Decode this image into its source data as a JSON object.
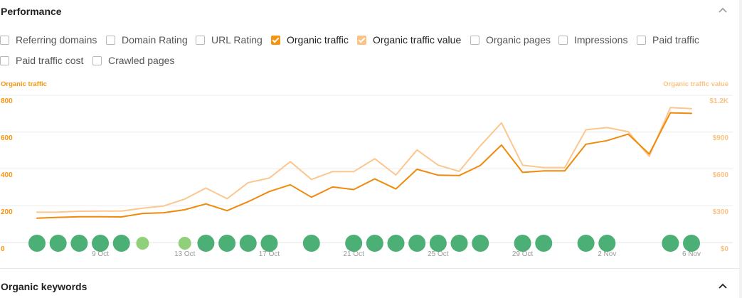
{
  "header": {
    "title": "Performance"
  },
  "metrics": [
    {
      "label": "Referring domains",
      "checked": false,
      "color": ""
    },
    {
      "label": "Domain Rating",
      "checked": false,
      "color": ""
    },
    {
      "label": "URL Rating",
      "checked": false,
      "color": ""
    },
    {
      "label": "Organic traffic",
      "checked": true,
      "color": "#f7940f"
    },
    {
      "label": "Organic traffic value",
      "checked": true,
      "color": "#fbc283"
    },
    {
      "label": "Organic pages",
      "checked": false,
      "color": ""
    },
    {
      "label": "Impressions",
      "checked": false,
      "color": ""
    },
    {
      "label": "Paid traffic",
      "checked": false,
      "color": ""
    },
    {
      "label": "Paid traffic cost",
      "checked": false,
      "color": ""
    },
    {
      "label": "Crawled pages",
      "checked": false,
      "color": ""
    }
  ],
  "chart_data": {
    "type": "line",
    "left_axis_title": "Organic traffic",
    "right_axis_title": "Organic traffic value",
    "left_ticks": [
      "0",
      "200",
      "400",
      "600",
      "800"
    ],
    "right_ticks": [
      "$0",
      "$300",
      "$600",
      "$900",
      "$1.2K"
    ],
    "ylim_left": [
      0,
      800
    ],
    "ylim_right": [
      0,
      1200
    ],
    "x_start_date": "2023-10-06",
    "x_ticks": [
      "9 Oct",
      "13 Oct",
      "17 Oct",
      "21 Oct",
      "25 Oct",
      "29 Oct",
      "2 Nov",
      "6 Nov"
    ],
    "x_tick_days": [
      3,
      7,
      11,
      15,
      19,
      23,
      27,
      31
    ],
    "series": [
      {
        "name": "Organic traffic",
        "axis": "left",
        "color": "#f08a0c",
        "x": [
          0,
          1,
          2,
          3,
          4,
          5,
          6,
          7,
          8,
          9,
          10,
          11,
          12,
          13,
          14,
          15,
          16,
          17,
          18,
          19,
          20,
          21,
          22,
          23,
          24,
          25,
          26,
          27,
          28,
          29,
          30,
          31
        ],
        "values": [
          132,
          137,
          140,
          140,
          139,
          158,
          162,
          178,
          210,
          173,
          222,
          277,
          314,
          246,
          302,
          288,
          346,
          291,
          398,
          366,
          364,
          419,
          530,
          381,
          389,
          389,
          534,
          554,
          589,
          481,
          705,
          702
        ]
      },
      {
        "name": "Organic traffic value",
        "axis": "right",
        "color": "#fbc78f",
        "x": [
          0,
          1,
          2,
          3,
          4,
          5,
          6,
          7,
          8,
          9,
          10,
          11,
          12,
          13,
          14,
          15,
          16,
          17,
          18,
          19,
          20,
          21,
          22,
          23,
          24,
          25,
          26,
          27,
          28,
          29,
          30,
          31
        ],
        "values": [
          247,
          248,
          255,
          256,
          257,
          280,
          298,
          354,
          444,
          357,
          488,
          525,
          659,
          514,
          578,
          578,
          683,
          551,
          755,
          631,
          580,
          789,
          975,
          631,
          611,
          611,
          919,
          937,
          904,
          702,
          1100,
          1091
        ]
      }
    ],
    "markers": {
      "type": "events",
      "days": [
        0,
        1,
        2,
        3,
        4,
        5,
        7,
        8,
        9,
        10,
        11,
        13,
        15,
        16,
        17,
        18,
        19,
        20,
        21,
        23,
        24,
        26,
        27,
        30,
        31
      ],
      "kinds": [
        "major",
        "major",
        "major",
        "major",
        "major",
        "minor",
        "minor",
        "major",
        "major",
        "major",
        "major",
        "major",
        "major",
        "major",
        "major",
        "major",
        "major",
        "major",
        "major",
        "major",
        "major",
        "major",
        "major",
        "major",
        "major"
      ],
      "colors": {
        "major": "#4caf75",
        "minor": "#90d07a"
      }
    },
    "grid": true
  },
  "footer": {
    "title": "Organic keywords"
  }
}
